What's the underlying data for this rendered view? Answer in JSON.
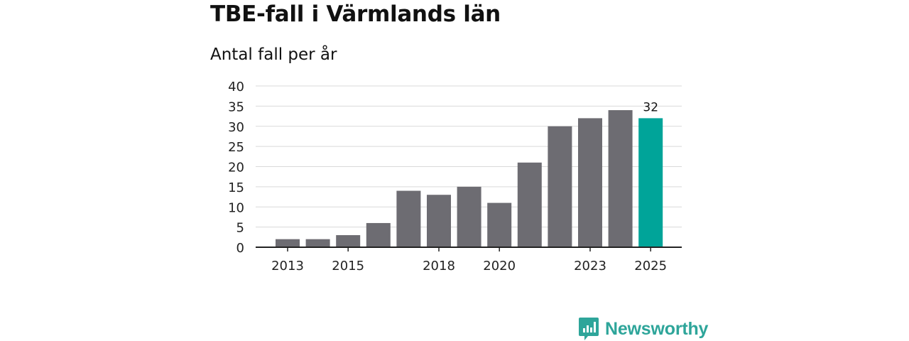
{
  "chart_data": {
    "type": "bar",
    "title": "TBE-fall i Värmlands län",
    "subtitle": "Antal fall per år",
    "xlabel": "",
    "ylabel": "",
    "ylim": [
      0,
      40
    ],
    "yticks": [
      0,
      5,
      10,
      15,
      20,
      25,
      30,
      35,
      40
    ],
    "categories": [
      "2013",
      "2014",
      "2015",
      "2016",
      "2017",
      "2018",
      "2019",
      "2020",
      "2021",
      "2022",
      "2023",
      "2024",
      "2025"
    ],
    "values": [
      2,
      2,
      3,
      6,
      14,
      13,
      15,
      11,
      21,
      30,
      32,
      34,
      32
    ],
    "xtick_labels": [
      "2013",
      "2015",
      "2018",
      "2020",
      "2023",
      "2025"
    ],
    "highlight": {
      "category": "2025",
      "label": "32"
    },
    "grid": true,
    "colors": {
      "bar": "#6d6c72",
      "highlight": "#00a499",
      "grid": "#d9d9d9",
      "axis": "#222222"
    }
  },
  "brand": {
    "name": "Newsworthy",
    "color": "#2ea59a"
  }
}
